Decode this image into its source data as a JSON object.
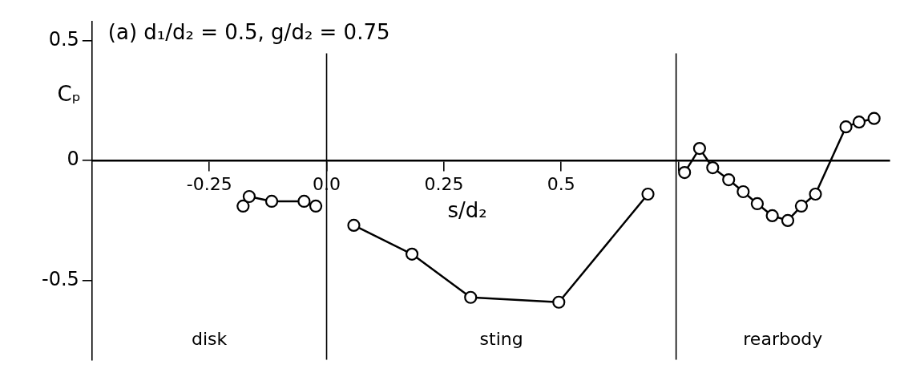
{
  "chart_data": {
    "type": "line",
    "title": "(a) d₁/d₂ = 0.5, g/d₂ = 0.75",
    "xlabel": "s/d₂",
    "ylabel": "Cₚ",
    "marker": "circle",
    "xlim": [
      -0.5,
      1.2
    ],
    "ylim": [
      -0.83,
      0.58
    ],
    "xticks": [
      -0.25,
      {
        "value": 0,
        "label": "0.0"
      },
      0.25,
      0.5,
      {
        "value": 0.75,
        "label": null
      }
    ],
    "yticks": [
      -0.5,
      0,
      0.5
    ],
    "series": [
      {
        "color": "#000000",
        "x": [
          -0.178,
          -0.165,
          -0.117,
          -0.048,
          -0.023
        ],
        "values": [
          -0.19,
          -0.15,
          -0.17,
          -0.17,
          -0.19
        ]
      },
      {
        "color": "#000000",
        "x": [
          0.058,
          0.182,
          0.307,
          0.495,
          0.685
        ],
        "values": [
          -0.27,
          -0.39,
          -0.57,
          -0.59,
          -0.14
        ]
      },
      {
        "color": "#000000",
        "x": [
          0.763,
          0.795,
          0.823,
          0.857,
          0.888,
          0.918,
          0.95,
          0.983,
          1.012,
          1.042,
          1.107,
          1.135,
          1.167
        ],
        "values": [
          -0.05,
          0.05,
          -0.03,
          -0.08,
          -0.13,
          -0.18,
          -0.23,
          -0.25,
          -0.19,
          -0.14,
          0.14,
          0.16,
          0.175
        ]
      }
    ],
    "ref_lines": [
      {
        "axis": "x",
        "value": 0,
        "color": "#000000"
      },
      {
        "axis": "x",
        "value": 0.745,
        "color": "#000000"
      }
    ],
    "annotations": [
      "disk",
      "sting",
      "rearbody"
    ]
  }
}
